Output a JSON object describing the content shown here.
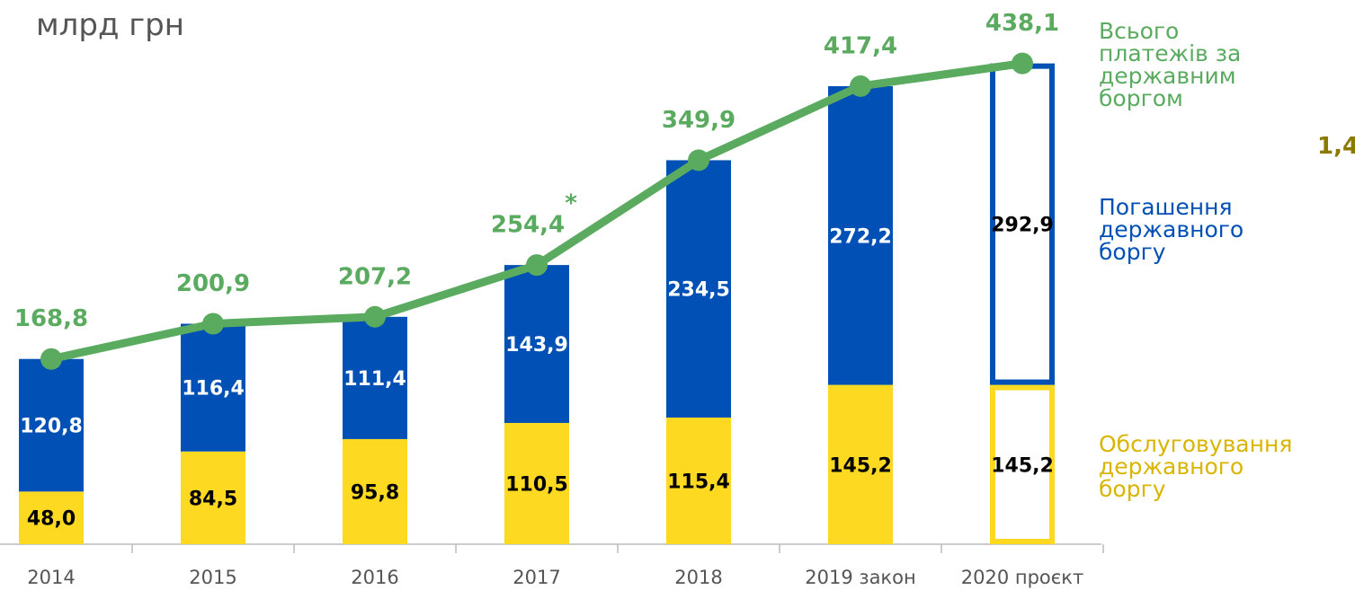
{
  "chart_data": {
    "type": "stacked_bar_line",
    "unit_label": "млрд грн",
    "categories": [
      "2014",
      "2015",
      "2016",
      "2017",
      "2018",
      "2019 закон",
      "2020 проєкт"
    ],
    "hollow_last": true,
    "series": [
      {
        "name": "Обслуговування державного боргу",
        "type": "bar",
        "color": "#fdd922",
        "label_color": "#d9b400",
        "values": [
          48.0,
          84.5,
          95.8,
          110.5,
          115.4,
          145.2,
          145.2
        ],
        "value_labels": [
          "48,0",
          "84,5",
          "95,8",
          "110,5",
          "115,4",
          "145,2",
          "145,2"
        ]
      },
      {
        "name": "Погашення державного боргу",
        "type": "bar",
        "color": "#0050b5",
        "label_color": "#0050b5",
        "values": [
          120.8,
          116.4,
          111.4,
          143.9,
          234.5,
          272.2,
          292.9
        ],
        "value_labels": [
          "120,8",
          "116,4",
          "111,4",
          "143,9",
          "234,5",
          "272,2",
          "292,9"
        ]
      },
      {
        "name": "Всього платежів за державним боргом",
        "type": "line",
        "color": "#5aab5f",
        "label_color": "#5aab5f",
        "values": [
          168.8,
          200.9,
          207.2,
          254.4,
          349.9,
          417.4,
          438.1
        ],
        "value_labels": [
          "168,8",
          "200,9",
          "207,2",
          "254,4",
          "349,9",
          "417,4",
          "438,1"
        ]
      }
    ],
    "annotations": [
      "*",
      "1,4"
    ]
  }
}
